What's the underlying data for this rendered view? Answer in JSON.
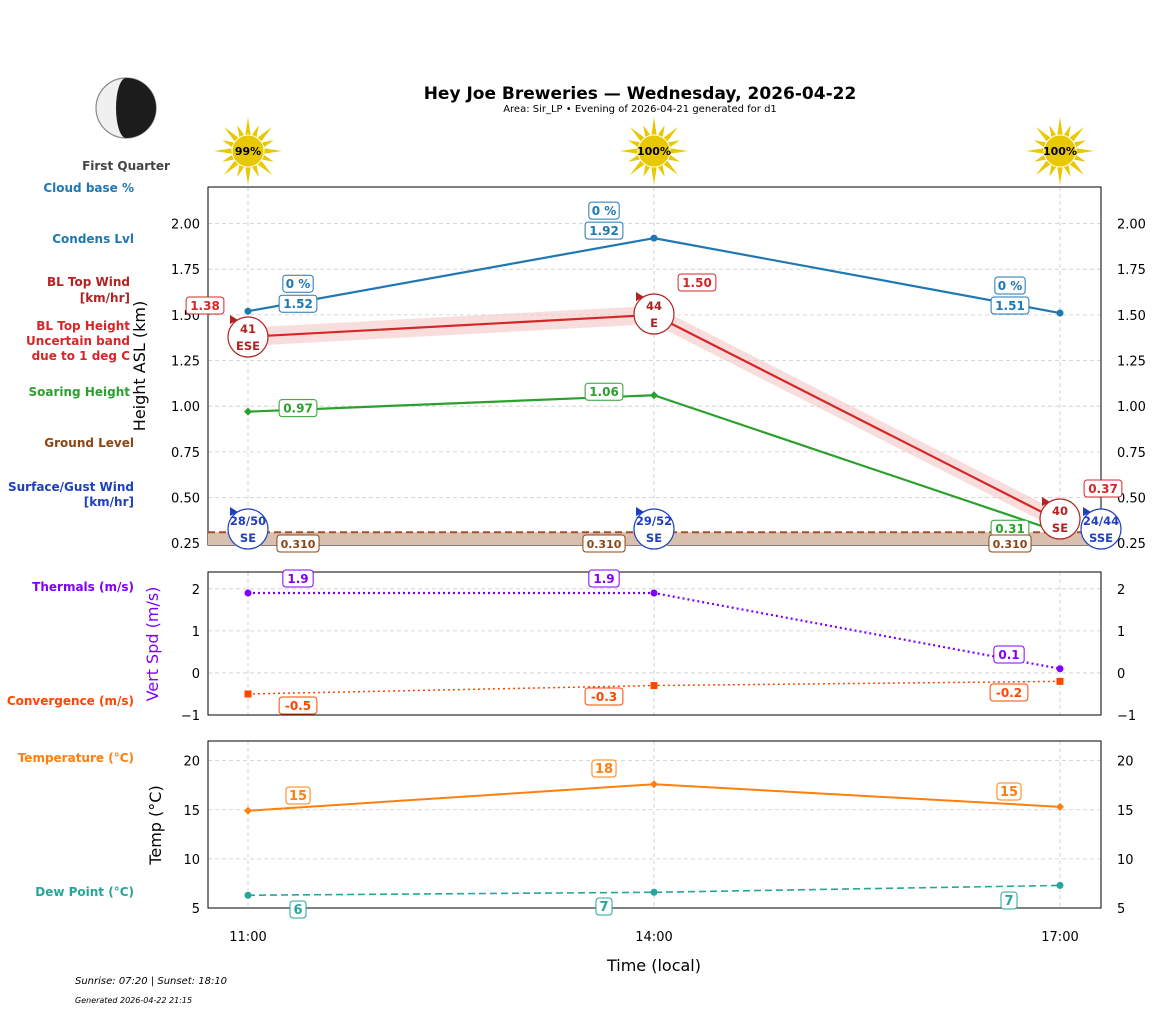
{
  "title": "Hey Joe Breweries — Wednesday, 2026-04-22",
  "subtitle": "Area: Sir_LP • Evening of 2026-04-21 generated for d1",
  "moon_phase": "First Quarter",
  "footer": {
    "sun": "Sunrise: 07:20 | Sunset: 18:10",
    "generated": "Generated 2026-04-22 21:15"
  },
  "side_labels": {
    "cloud_base": "Cloud base %",
    "condens": "Condens Lvl",
    "bl_wind_1": "BL Top Wind",
    "bl_wind_2": "[km/hr]",
    "bl_height_1": "BL Top Height",
    "bl_height_2": "Uncertain band",
    "bl_height_3": "due to 1 deg C",
    "soaring": "Soaring Height",
    "ground": "Ground Level",
    "surface_1": "Surface/Gust Wind",
    "surface_2": "[km/hr]",
    "thermals": "Thermals (m/s)",
    "convergence": "Convergence (m/s)",
    "temperature": "Temperature (°C)",
    "dewpoint": "Dew Point (°C)"
  },
  "colors": {
    "condens": "#1f77b4",
    "bl": "#d62728",
    "bl_wind": "#b22222",
    "soaring": "#2ca02c",
    "ground": "#8b4513",
    "surface": "#1f3fbf",
    "thermals": "#8000ff",
    "convergence": "#ff4500",
    "temperature": "#ff7f0e",
    "dewpoint": "#26a69a",
    "sun": "#e8c800"
  },
  "chart_data": [
    {
      "type": "line",
      "ylabel": "Height ASL (km)",
      "ylim": [
        0.24,
        2.2
      ],
      "yticks": [
        "2.00",
        "1.75",
        "1.50",
        "1.25",
        "1.00",
        "0.75",
        "0.50",
        "0.25"
      ],
      "grid": true,
      "x": [
        "11:00",
        "14:00",
        "17:00"
      ],
      "sun_percent": [
        "99%",
        "100%",
        "100%"
      ],
      "series": [
        {
          "name": "Condens Lvl",
          "values": [
            1.52,
            1.92,
            1.51
          ],
          "labels": [
            "1.52",
            "1.92",
            "1.51"
          ],
          "cloud_base_pct": [
            "0 %",
            "0 %",
            "0 %"
          ]
        },
        {
          "name": "BL Top Height",
          "values": [
            1.38,
            1.5,
            0.37
          ],
          "labels": [
            "1.38",
            "1.50",
            "0.37"
          ],
          "band": 0.05,
          "wind_speed": [
            "41",
            "44",
            "40"
          ],
          "wind_dir": [
            "ESE",
            "E",
            "SE"
          ]
        },
        {
          "name": "Soaring Height",
          "values": [
            0.97,
            1.06,
            0.31
          ],
          "labels": [
            "0.97",
            "1.06",
            "0.31"
          ]
        },
        {
          "name": "Ground Level",
          "values": [
            0.31,
            0.31,
            0.31
          ],
          "labels": [
            "0.310",
            "0.310",
            "0.310"
          ]
        },
        {
          "name": "Surface/Gust Wind",
          "wind": [
            "28/50",
            "29/52",
            "24/44"
          ],
          "wind_dir": [
            "SE",
            "SE",
            "SSE"
          ]
        }
      ]
    },
    {
      "type": "line",
      "ylabel": "Vert Spd (m/s)",
      "ylim": [
        -1,
        2.4
      ],
      "yticks": [
        "2",
        "1",
        "0",
        "−1"
      ],
      "grid": true,
      "x": [
        "11:00",
        "14:00",
        "17:00"
      ],
      "series": [
        {
          "name": "Thermals (m/s)",
          "values": [
            1.9,
            1.9,
            0.1
          ],
          "labels": [
            "1.9",
            "1.9",
            "0.1"
          ]
        },
        {
          "name": "Convergence (m/s)",
          "values": [
            -0.5,
            -0.3,
            -0.2
          ],
          "labels": [
            "-0.5",
            "-0.3",
            "-0.2"
          ]
        }
      ]
    },
    {
      "type": "line",
      "ylabel": "Temp (°C)",
      "xlabel": "Time (local)",
      "ylim": [
        5,
        22
      ],
      "yticks": [
        "20",
        "15",
        "10",
        "5"
      ],
      "grid": true,
      "x": [
        "11:00",
        "14:00",
        "17:00"
      ],
      "series": [
        {
          "name": "Temperature (°C)",
          "values": [
            14.9,
            17.6,
            15.3
          ],
          "labels": [
            "15",
            "18",
            "15"
          ]
        },
        {
          "name": "Dew Point (°C)",
          "values": [
            6.3,
            6.6,
            7.3
          ],
          "labels": [
            "6",
            "7",
            "7"
          ]
        }
      ]
    }
  ]
}
